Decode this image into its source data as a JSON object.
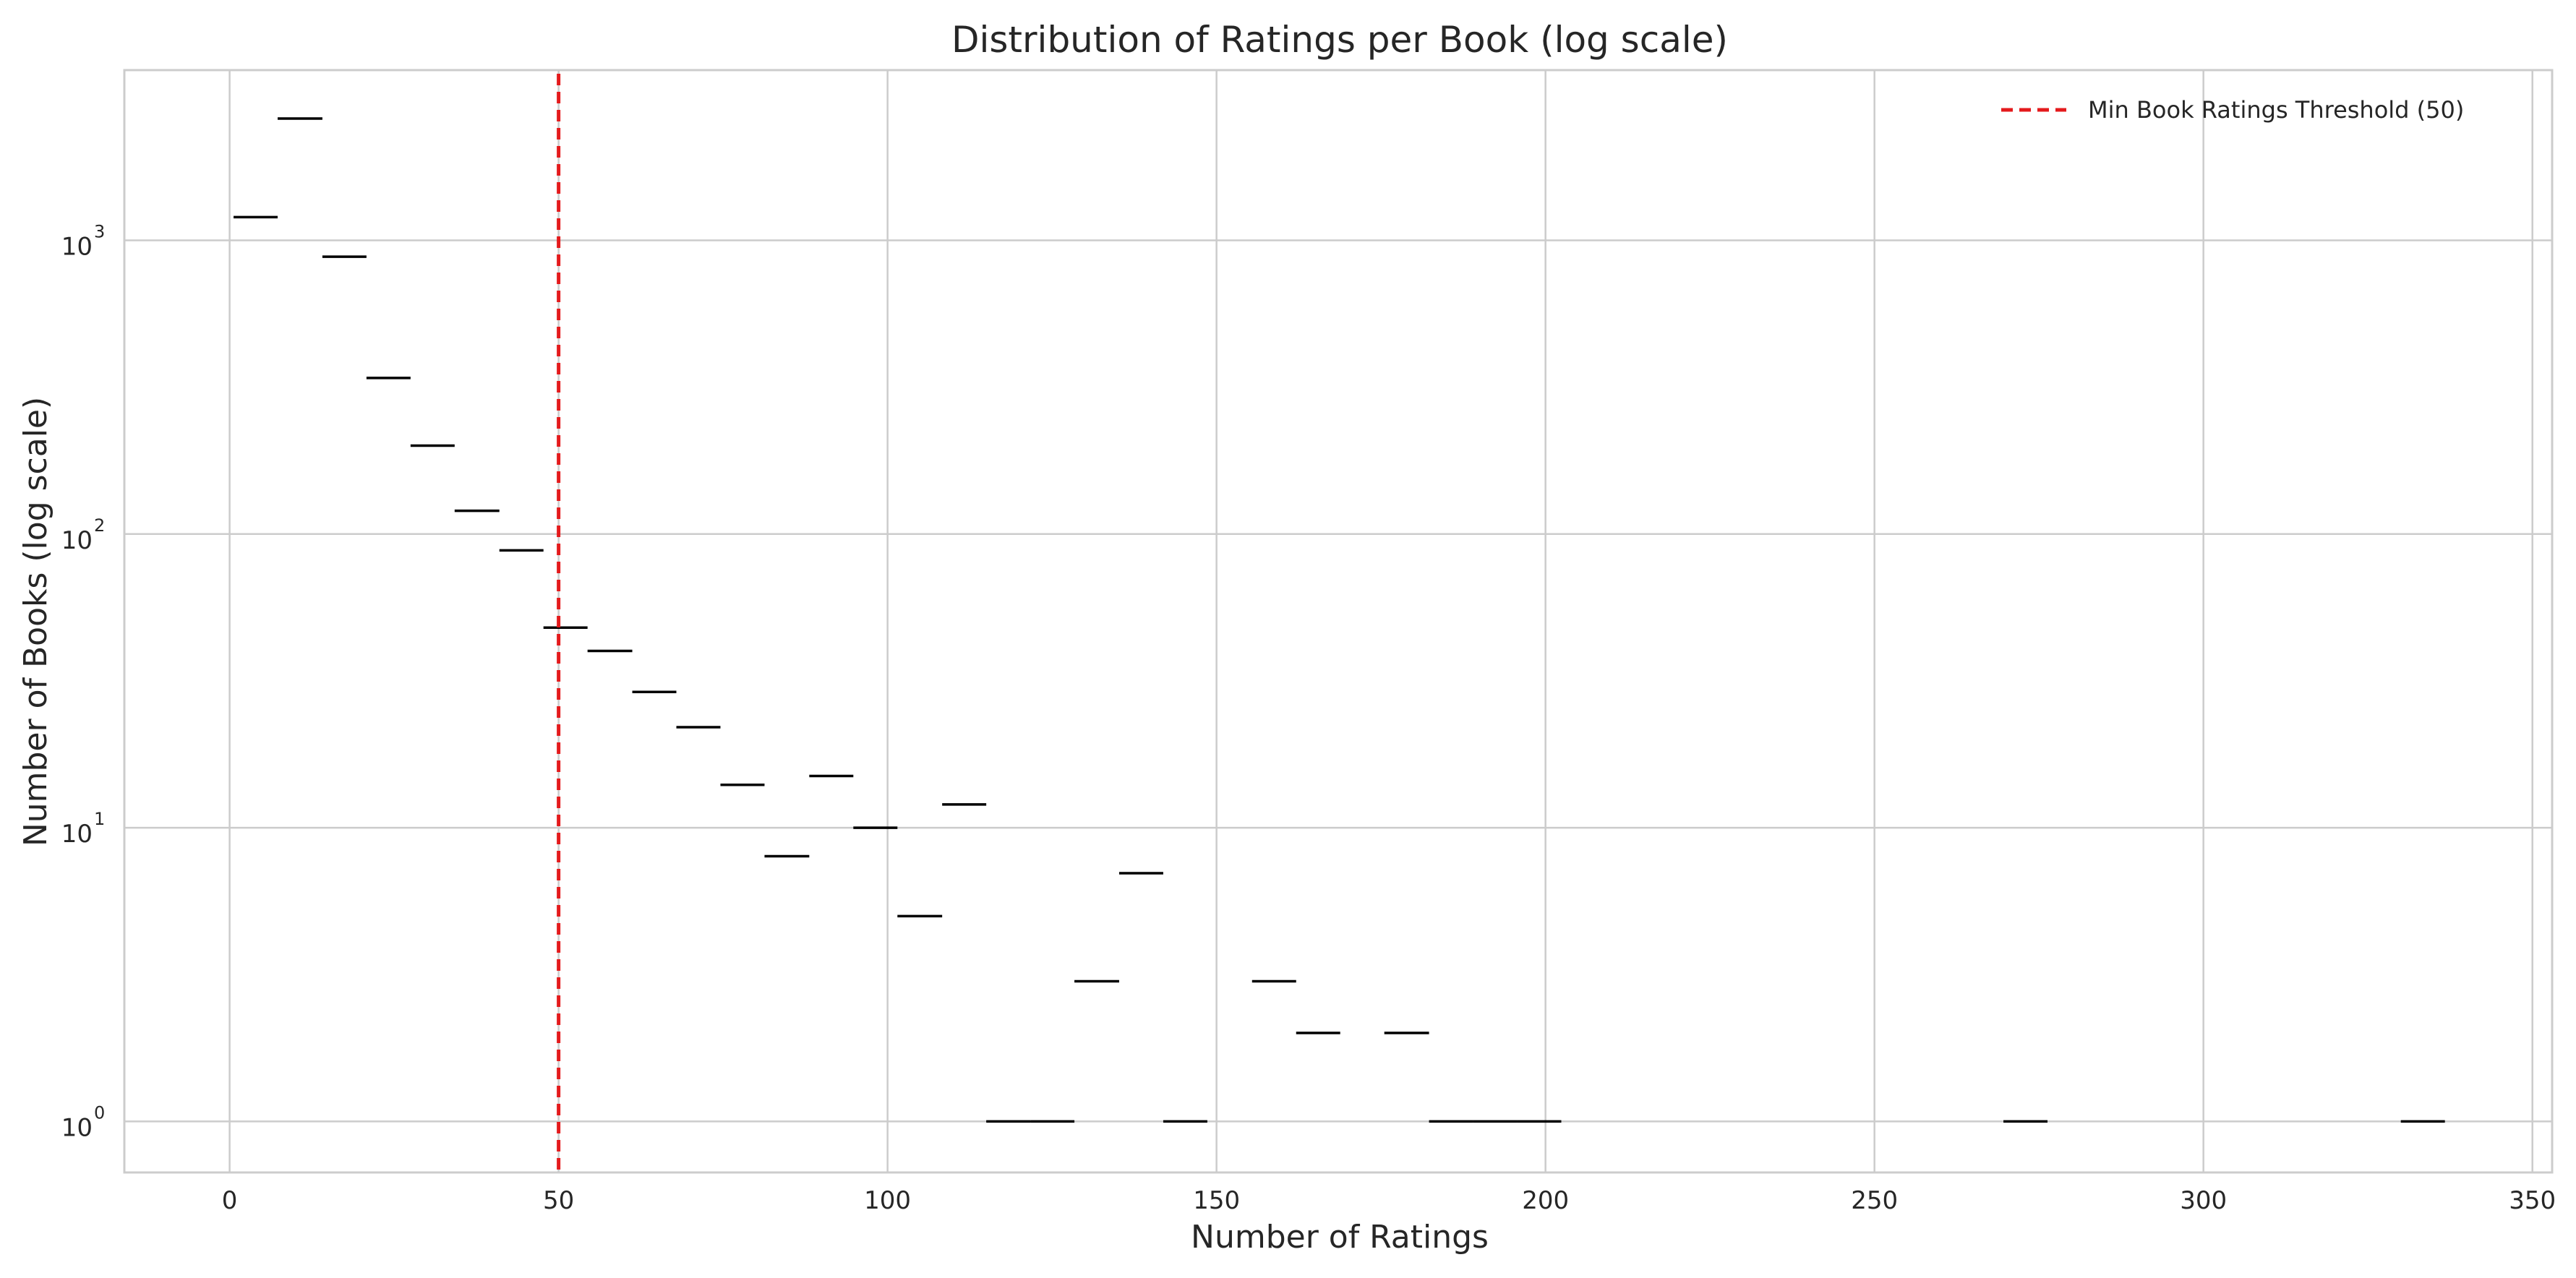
{
  "chart_data": {
    "type": "histogram",
    "title": "Distribution of Ratings per Book (log scale)",
    "xlabel": "Number of Ratings",
    "ylabel": "Number of Books (log scale)",
    "xlim": [
      -16,
      353
    ],
    "ylim": [
      0.67,
      3800
    ],
    "yscale": "log",
    "grid": true,
    "legend_position": "top-right",
    "x_ticks": [
      {
        "value": 0,
        "label": "0"
      },
      {
        "value": 50,
        "label": "50"
      },
      {
        "value": 100,
        "label": "100"
      },
      {
        "value": 150,
        "label": "150"
      },
      {
        "value": 200,
        "label": "200"
      },
      {
        "value": 250,
        "label": "250"
      },
      {
        "value": 300,
        "label": "300"
      },
      {
        "value": 350,
        "label": "350"
      }
    ],
    "y_ticks": [
      {
        "value": 1,
        "base": "10",
        "exponent": "0"
      },
      {
        "value": 10,
        "base": "10",
        "exponent": "1"
      },
      {
        "value": 100,
        "base": "10",
        "exponent": "2"
      },
      {
        "value": 1000,
        "base": "10",
        "exponent": "3"
      }
    ],
    "bins": [
      {
        "x0": 0.6,
        "x1": 7.3,
        "count": 1200
      },
      {
        "x0": 7.3,
        "x1": 14.1,
        "count": 2600
      },
      {
        "x0": 14.1,
        "x1": 20.8,
        "count": 880
      },
      {
        "x0": 20.8,
        "x1": 27.5,
        "count": 340
      },
      {
        "x0": 27.5,
        "x1": 34.2,
        "count": 200
      },
      {
        "x0": 34.2,
        "x1": 41.0,
        "count": 120
      },
      {
        "x0": 41.0,
        "x1": 47.7,
        "count": 88
      },
      {
        "x0": 47.7,
        "x1": 54.4,
        "count": 48
      },
      {
        "x0": 54.4,
        "x1": 61.2,
        "count": 40
      },
      {
        "x0": 61.2,
        "x1": 67.9,
        "count": 29
      },
      {
        "x0": 67.9,
        "x1": 74.6,
        "count": 22
      },
      {
        "x0": 74.6,
        "x1": 81.3,
        "count": 14
      },
      {
        "x0": 81.3,
        "x1": 88.1,
        "count": 8
      },
      {
        "x0": 88.1,
        "x1": 94.8,
        "count": 15
      },
      {
        "x0": 94.8,
        "x1": 101.5,
        "count": 10
      },
      {
        "x0": 101.5,
        "x1": 108.3,
        "count": 5
      },
      {
        "x0": 108.3,
        "x1": 115.0,
        "count": 12
      },
      {
        "x0": 115.0,
        "x1": 121.7,
        "count": 1
      },
      {
        "x0": 121.7,
        "x1": 128.4,
        "count": 1
      },
      {
        "x0": 128.4,
        "x1": 135.2,
        "count": 3
      },
      {
        "x0": 135.2,
        "x1": 141.9,
        "count": 7
      },
      {
        "x0": 141.9,
        "x1": 148.6,
        "count": 1
      },
      {
        "x0": 155.4,
        "x1": 162.1,
        "count": 3
      },
      {
        "x0": 162.1,
        "x1": 168.8,
        "count": 2
      },
      {
        "x0": 175.5,
        "x1": 182.3,
        "count": 2
      },
      {
        "x0": 182.3,
        "x1": 189.0,
        "count": 1
      },
      {
        "x0": 189.0,
        "x1": 195.7,
        "count": 1
      },
      {
        "x0": 195.7,
        "x1": 202.4,
        "count": 1
      },
      {
        "x0": 269.6,
        "x1": 276.3,
        "count": 1
      },
      {
        "x0": 330.0,
        "x1": 336.7,
        "count": 1
      }
    ],
    "threshold": {
      "value": 50,
      "label": "Min Book Ratings Threshold (50)",
      "color": "#e41a1c",
      "style": "dashed"
    },
    "colors": {
      "bin_edge": "#000000",
      "grid": "#cccccc",
      "axes_frame": "#cccccc",
      "text": "#262626"
    }
  }
}
